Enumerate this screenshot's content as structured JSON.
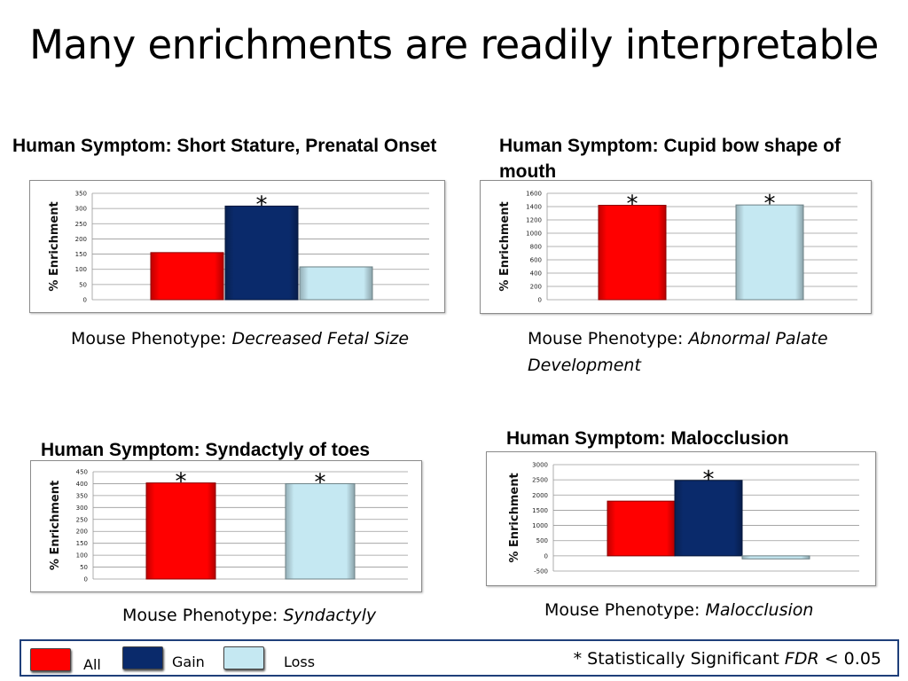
{
  "slide": {
    "title": "Many enrichments are readily interpretable"
  },
  "colors": {
    "all": "#ff0000",
    "gain": "#0a2a6b",
    "loss": "#c5e8f2"
  },
  "panels": [
    {
      "symptom": "Human Symptom: Short Stature, Prenatal Onset",
      "phenotype_prefix": "Mouse Phenotype: ",
      "phenotype_name": "Decreased Fetal Size",
      "chart_data": {
        "type": "bar",
        "ylabel": "% Enrichment",
        "ylim": [
          0,
          350
        ],
        "yticks": [
          0,
          50,
          100,
          150,
          200,
          250,
          300,
          350
        ],
        "series": [
          {
            "name": "All",
            "value": 155,
            "color": "#ff0000",
            "significant": false
          },
          {
            "name": "Gain",
            "value": 308,
            "color": "#0a2a6b",
            "significant": true
          },
          {
            "name": "Loss",
            "value": 108,
            "color": "#c5e8f2",
            "significant": false
          }
        ]
      }
    },
    {
      "symptom": "Human Symptom: Cupid bow shape of mouth",
      "phenotype_prefix": "Mouse Phenotype: ",
      "phenotype_name": "Abnormal Palate Development",
      "chart_data": {
        "type": "bar",
        "ylabel": "% Enrichment",
        "ylim": [
          0,
          1600
        ],
        "yticks": [
          0,
          200,
          400,
          600,
          800,
          1000,
          1200,
          1400,
          1600
        ],
        "series": [
          {
            "name": "All",
            "value": 1420,
            "color": "#ff0000",
            "significant": true
          },
          {
            "name": "Loss",
            "value": 1425,
            "color": "#c5e8f2",
            "significant": true
          }
        ]
      }
    },
    {
      "symptom": "Human Symptom: Syndactyly of toes",
      "phenotype_prefix": "Mouse Phenotype: ",
      "phenotype_name": "Syndactyly",
      "chart_data": {
        "type": "bar",
        "ylabel": "% Enrichment",
        "ylim": [
          0,
          450
        ],
        "yticks": [
          0,
          50,
          100,
          150,
          200,
          250,
          300,
          350,
          400,
          450
        ],
        "series": [
          {
            "name": "All",
            "value": 403,
            "color": "#ff0000",
            "significant": true
          },
          {
            "name": "Loss",
            "value": 400,
            "color": "#c5e8f2",
            "significant": true
          }
        ]
      }
    },
    {
      "symptom": "Human Symptom: Malocclusion",
      "phenotype_prefix": "Mouse Phenotype: ",
      "phenotype_name": "Malocclusion",
      "chart_data": {
        "type": "bar",
        "ylabel": "% Enrichment",
        "ylim": [
          -500,
          3000
        ],
        "yticks": [
          -500,
          0,
          500,
          1000,
          1500,
          2000,
          2500,
          3000
        ],
        "series": [
          {
            "name": "All",
            "value": 1800,
            "color": "#ff0000",
            "significant": false
          },
          {
            "name": "Gain",
            "value": 2480,
            "color": "#0a2a6b",
            "significant": true
          },
          {
            "name": "Loss",
            "value": -100,
            "color": "#c5e8f2",
            "significant": false
          }
        ]
      }
    }
  ],
  "legend": {
    "items": [
      {
        "label": "All",
        "color": "#ff0000"
      },
      {
        "label": "Gain",
        "color": "#0a2a6b"
      },
      {
        "label": "Loss",
        "color": "#c5e8f2"
      }
    ],
    "note_prefix": "* Statistically Significant ",
    "note_italic": "FDR",
    "note_suffix": " < 0.05",
    "significance_marker": "*"
  }
}
